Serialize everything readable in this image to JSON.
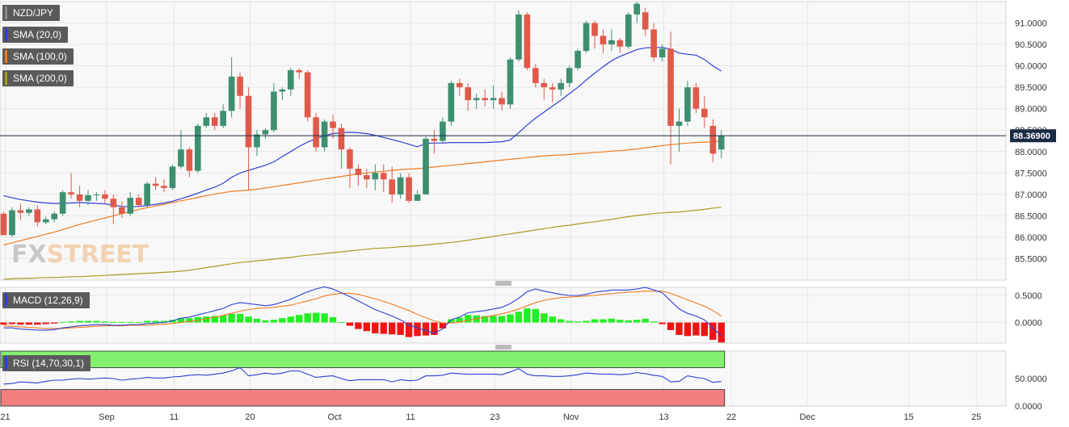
{
  "chart_data": {
    "type": "candlestick",
    "symbol": "NZD/JPY",
    "current_price": 88.369,
    "current_price_label": "88.36900",
    "watermark": "FXSTREET",
    "y_axis": {
      "range": [
        85.0,
        91.5
      ],
      "ticks": [
        "91.0000",
        "90.5000",
        "90.0000",
        "89.5000",
        "89.0000",
        "88.5000",
        "88.0000",
        "87.5000",
        "87.0000",
        "86.5000",
        "86.0000",
        "85.5000"
      ]
    },
    "x_axis": {
      "labels": [
        "21",
        "Sep",
        "11",
        "20",
        "Oct",
        "11",
        "23",
        "Nov",
        "13",
        "22",
        "Dec",
        "15",
        "25"
      ]
    },
    "ohlc": [
      [
        86.55,
        86.05,
        86.6,
        86.05
      ],
      [
        86.05,
        86.63,
        86.7,
        86.0
      ],
      [
        86.63,
        86.57,
        86.78,
        86.4
      ],
      [
        86.57,
        86.65,
        86.7,
        86.5
      ],
      [
        86.65,
        86.35,
        86.75,
        86.25
      ],
      [
        86.35,
        86.42,
        86.48,
        86.3
      ],
      [
        86.42,
        86.55,
        86.6,
        86.35
      ],
      [
        86.55,
        87.05,
        87.1,
        86.5
      ],
      [
        87.05,
        87.0,
        87.5,
        86.9
      ],
      [
        87.0,
        86.85,
        87.2,
        86.7
      ],
      [
        86.85,
        86.98,
        87.1,
        86.75
      ],
      [
        86.98,
        87.0,
        87.05,
        86.85
      ],
      [
        87.0,
        86.9,
        87.1,
        86.8
      ],
      [
        86.9,
        86.7,
        87.0,
        86.3
      ],
      [
        86.7,
        86.55,
        86.85,
        86.45
      ],
      [
        86.55,
        86.92,
        87.05,
        86.5
      ],
      [
        86.92,
        86.75,
        87.0,
        86.7
      ],
      [
        86.75,
        87.25,
        87.3,
        86.7
      ],
      [
        87.25,
        87.2,
        87.4,
        87.1
      ],
      [
        87.2,
        87.15,
        87.35,
        87.05
      ],
      [
        87.15,
        87.65,
        87.7,
        87.1
      ],
      [
        87.65,
        88.05,
        88.5,
        87.6
      ],
      [
        88.05,
        87.55,
        88.1,
        87.4
      ],
      [
        87.55,
        88.6,
        88.65,
        87.5
      ],
      [
        88.6,
        88.8,
        88.9,
        88.55
      ],
      [
        88.8,
        88.6,
        88.9,
        88.5
      ],
      [
        88.6,
        88.95,
        89.1,
        88.55
      ],
      [
        88.95,
        89.75,
        90.2,
        88.8
      ],
      [
        89.75,
        89.3,
        89.85,
        89.0
      ],
      [
        89.3,
        88.1,
        89.5,
        87.1
      ],
      [
        88.1,
        88.4,
        88.5,
        87.9
      ],
      [
        88.4,
        88.5,
        88.55,
        88.3
      ],
      [
        88.5,
        89.4,
        89.6,
        88.45
      ],
      [
        89.4,
        89.45,
        89.5,
        89.2
      ],
      [
        89.45,
        89.9,
        89.95,
        89.3
      ],
      [
        89.9,
        89.85,
        89.95,
        89.7
      ],
      [
        89.85,
        88.8,
        89.9,
        88.7
      ],
      [
        88.8,
        88.1,
        88.9,
        88.0
      ],
      [
        88.1,
        88.7,
        88.75,
        88.0
      ],
      [
        88.7,
        88.55,
        88.85,
        88.3
      ],
      [
        88.55,
        88.05,
        88.65,
        87.6
      ],
      [
        88.05,
        87.6,
        88.1,
        87.15
      ],
      [
        87.6,
        87.45,
        87.7,
        87.2
      ],
      [
        87.45,
        87.35,
        87.6,
        87.15
      ],
      [
        87.35,
        87.5,
        87.7,
        87.1
      ],
      [
        87.5,
        87.35,
        87.7,
        87.05
      ],
      [
        87.35,
        87.0,
        87.65,
        86.8
      ],
      [
        87.0,
        87.4,
        87.5,
        86.9
      ],
      [
        87.4,
        86.85,
        87.5,
        86.8
      ],
      [
        86.85,
        87.0,
        87.1,
        86.85
      ],
      [
        87.0,
        88.3,
        88.35,
        87.0
      ],
      [
        88.3,
        88.25,
        88.5,
        87.95
      ],
      [
        88.25,
        88.7,
        88.8,
        88.2
      ],
      [
        88.7,
        89.6,
        89.65,
        88.6
      ],
      [
        89.6,
        89.5,
        89.7,
        89.3
      ],
      [
        89.5,
        89.2,
        89.6,
        88.95
      ],
      [
        89.2,
        89.25,
        89.35,
        89.0
      ],
      [
        89.25,
        89.2,
        89.45,
        89.05
      ],
      [
        89.2,
        89.25,
        89.55,
        89.0
      ],
      [
        89.25,
        89.1,
        89.4,
        88.95
      ],
      [
        89.1,
        90.15,
        90.2,
        89.0
      ],
      [
        90.15,
        91.2,
        91.3,
        90.1
      ],
      [
        91.2,
        89.95,
        91.25,
        89.9
      ],
      [
        89.95,
        89.6,
        90.05,
        89.5
      ],
      [
        89.6,
        89.5,
        89.7,
        89.2
      ],
      [
        89.5,
        89.45,
        89.6,
        89.15
      ],
      [
        89.45,
        89.6,
        89.7,
        89.3
      ],
      [
        89.6,
        89.95,
        90.0,
        89.5
      ],
      [
        89.95,
        90.35,
        90.4,
        89.9
      ],
      [
        90.35,
        91.0,
        91.05,
        90.3
      ],
      [
        91.0,
        90.7,
        91.05,
        90.4
      ],
      [
        90.7,
        90.5,
        90.85,
        90.3
      ],
      [
        90.5,
        90.6,
        90.85,
        90.35
      ],
      [
        90.6,
        90.45,
        90.65,
        90.3
      ],
      [
        90.45,
        91.2,
        91.25,
        90.4
      ],
      [
        91.2,
        91.45,
        91.5,
        91.0
      ],
      [
        91.25,
        90.85,
        91.35,
        90.7
      ],
      [
        90.85,
        90.2,
        91.0,
        90.1
      ],
      [
        90.2,
        90.4,
        90.5,
        90.1
      ],
      [
        90.4,
        88.6,
        90.8,
        87.7
      ],
      [
        88.6,
        88.7,
        89.0,
        88.0
      ],
      [
        88.7,
        89.5,
        89.65,
        88.6
      ],
      [
        89.5,
        89.0,
        89.6,
        88.9
      ],
      [
        89.0,
        88.8,
        89.3,
        88.55
      ],
      [
        88.6,
        87.95,
        88.75,
        87.75
      ],
      [
        88.05,
        88.37,
        88.5,
        87.85
      ]
    ],
    "series": [
      {
        "name": "SMA (20,0)",
        "color": "#2f3fd4",
        "values": [
          86.97,
          86.92,
          86.88,
          86.85,
          86.82,
          86.8,
          86.79,
          86.79,
          86.8,
          86.81,
          86.8,
          86.79,
          86.78,
          86.75,
          86.72,
          86.71,
          86.72,
          86.74,
          86.77,
          86.8,
          86.84,
          86.9,
          86.96,
          87.03,
          87.1,
          87.17,
          87.26,
          87.4,
          87.5,
          87.56,
          87.62,
          87.68,
          87.76,
          87.88,
          88.0,
          88.12,
          88.22,
          88.3,
          88.37,
          88.42,
          88.44,
          88.45,
          88.44,
          88.42,
          88.38,
          88.33,
          88.28,
          88.23,
          88.17,
          88.11,
          88.19,
          88.2,
          88.2,
          88.21,
          88.21,
          88.21,
          88.21,
          88.21,
          88.22,
          88.23,
          88.27,
          88.44,
          88.62,
          88.78,
          88.92,
          89.06,
          89.2,
          89.35,
          89.5,
          89.67,
          89.83,
          89.98,
          90.12,
          90.22,
          90.3,
          90.38,
          90.42,
          90.43,
          90.43,
          90.39,
          90.3,
          90.27,
          90.25,
          90.15,
          90.0,
          89.88
        ]
      },
      {
        "name": "SMA (100,0)",
        "color": "#f07a1e",
        "values": [
          85.82,
          85.87,
          85.92,
          85.97,
          86.02,
          86.07,
          86.12,
          86.18,
          86.24,
          86.3,
          86.35,
          86.4,
          86.45,
          86.5,
          86.55,
          86.6,
          86.65,
          86.69,
          86.73,
          86.77,
          86.81,
          86.85,
          86.89,
          86.93,
          86.97,
          87.01,
          87.04,
          87.07,
          87.09,
          87.1,
          87.12,
          87.15,
          87.18,
          87.21,
          87.24,
          87.27,
          87.3,
          87.33,
          87.36,
          87.39,
          87.42,
          87.45,
          87.48,
          87.5,
          87.52,
          87.54,
          87.56,
          87.58,
          87.59,
          87.6,
          87.62,
          87.64,
          87.66,
          87.68,
          87.7,
          87.72,
          87.74,
          87.76,
          87.78,
          87.8,
          87.82,
          87.84,
          87.86,
          87.88,
          87.9,
          87.91,
          87.92,
          87.93,
          87.95,
          87.96,
          87.98,
          87.99,
          88.01,
          88.02,
          88.04,
          88.06,
          88.09,
          88.11,
          88.14,
          88.16,
          88.18,
          88.2,
          88.21,
          88.22,
          88.23,
          88.24
        ]
      },
      {
        "name": "SMA (200,0)",
        "color": "#a89a1e",
        "values": [
          85.02,
          85.03,
          85.04,
          85.04,
          85.05,
          85.06,
          85.06,
          85.07,
          85.08,
          85.08,
          85.09,
          85.1,
          85.11,
          85.12,
          85.13,
          85.14,
          85.15,
          85.16,
          85.17,
          85.18,
          85.19,
          85.21,
          85.23,
          85.26,
          85.29,
          85.32,
          85.35,
          85.38,
          85.41,
          85.43,
          85.45,
          85.47,
          85.49,
          85.51,
          85.53,
          85.56,
          85.58,
          85.6,
          85.62,
          85.64,
          85.66,
          85.68,
          85.7,
          85.72,
          85.74,
          85.75,
          85.76,
          85.78,
          85.79,
          85.8,
          85.82,
          85.84,
          85.86,
          85.88,
          85.9,
          85.93,
          85.96,
          85.99,
          86.02,
          86.05,
          86.08,
          86.11,
          86.14,
          86.17,
          86.2,
          86.23,
          86.26,
          86.28,
          86.31,
          86.34,
          86.36,
          86.39,
          86.42,
          86.45,
          86.48,
          86.51,
          86.53,
          86.55,
          86.57,
          86.58,
          86.59,
          86.61,
          86.63,
          86.65,
          86.68,
          86.7
        ]
      }
    ],
    "macd": {
      "label": "MACD (12,26,9)",
      "ticks": [
        "0.5000",
        "0.0000"
      ],
      "range": [
        -0.38,
        0.65
      ],
      "macd_color": "#2f3fd4",
      "signal_color": "#f07a1e",
      "macd_line": [
        -0.1,
        -0.1,
        -0.12,
        -0.13,
        -0.14,
        -0.14,
        -0.13,
        -0.1,
        -0.08,
        -0.06,
        -0.05,
        -0.04,
        -0.04,
        -0.05,
        -0.05,
        -0.04,
        -0.04,
        -0.02,
        -0.01,
        0.0,
        0.03,
        0.08,
        0.1,
        0.14,
        0.18,
        0.22,
        0.26,
        0.33,
        0.37,
        0.35,
        0.33,
        0.31,
        0.33,
        0.38,
        0.43,
        0.5,
        0.57,
        0.62,
        0.66,
        0.62,
        0.55,
        0.48,
        0.4,
        0.32,
        0.24,
        0.18,
        0.12,
        0.05,
        -0.05,
        -0.1,
        -0.15,
        -0.2,
        -0.12,
        0.05,
        0.1,
        0.18,
        0.2,
        0.22,
        0.25,
        0.28,
        0.35,
        0.45,
        0.57,
        0.62,
        0.58,
        0.55,
        0.52,
        0.5,
        0.5,
        0.52,
        0.56,
        0.58,
        0.6,
        0.6,
        0.6,
        0.62,
        0.65,
        0.6,
        0.55,
        0.4,
        0.25,
        0.17,
        0.12,
        0.05,
        -0.1,
        -0.25
      ],
      "signal_line": [
        -0.06,
        -0.07,
        -0.08,
        -0.09,
        -0.1,
        -0.11,
        -0.11,
        -0.11,
        -0.1,
        -0.09,
        -0.08,
        -0.07,
        -0.06,
        -0.06,
        -0.06,
        -0.05,
        -0.05,
        -0.05,
        -0.04,
        -0.03,
        -0.02,
        0.0,
        0.02,
        0.04,
        0.07,
        0.1,
        0.13,
        0.17,
        0.21,
        0.24,
        0.26,
        0.27,
        0.28,
        0.3,
        0.32,
        0.36,
        0.4,
        0.44,
        0.49,
        0.52,
        0.54,
        0.54,
        0.52,
        0.48,
        0.44,
        0.39,
        0.34,
        0.28,
        0.22,
        0.15,
        0.09,
        0.03,
        -0.01,
        -0.01,
        0.01,
        0.04,
        0.07,
        0.1,
        0.13,
        0.16,
        0.2,
        0.25,
        0.31,
        0.37,
        0.41,
        0.44,
        0.46,
        0.47,
        0.48,
        0.49,
        0.5,
        0.52,
        0.53,
        0.55,
        0.56,
        0.57,
        0.58,
        0.58,
        0.58,
        0.54,
        0.48,
        0.42,
        0.36,
        0.3,
        0.22,
        0.12
      ],
      "histogram": [
        -0.04,
        -0.03,
        -0.04,
        -0.04,
        -0.04,
        -0.03,
        -0.02,
        0.01,
        0.02,
        0.03,
        0.03,
        0.03,
        0.02,
        0.01,
        0.01,
        0.01,
        0.01,
        0.03,
        0.03,
        0.03,
        0.05,
        0.08,
        0.08,
        0.1,
        0.11,
        0.12,
        0.13,
        0.16,
        0.16,
        0.11,
        0.07,
        0.04,
        0.05,
        0.08,
        0.11,
        0.14,
        0.17,
        0.18,
        0.17,
        0.1,
        0.01,
        -0.06,
        -0.12,
        -0.16,
        -0.2,
        -0.21,
        -0.22,
        -0.23,
        -0.27,
        -0.25,
        -0.24,
        -0.23,
        -0.11,
        0.06,
        0.09,
        0.14,
        0.13,
        0.12,
        0.12,
        0.12,
        0.15,
        0.2,
        0.26,
        0.25,
        0.17,
        0.11,
        0.06,
        0.03,
        0.02,
        0.03,
        0.06,
        0.06,
        0.07,
        0.05,
        0.04,
        0.05,
        0.07,
        0.02,
        -0.03,
        -0.14,
        -0.23,
        -0.25,
        -0.24,
        -0.25,
        -0.32,
        -0.37
      ]
    },
    "rsi": {
      "label": "RSI (14,70,30,1)",
      "ticks": [
        "50.0000",
        "0.0000"
      ],
      "range": [
        0,
        100
      ],
      "overbought": 70,
      "oversold": 30,
      "line_color": "#2f3fd4",
      "values": [
        40,
        41,
        44,
        43,
        42,
        45,
        47,
        47,
        49,
        50,
        49,
        50,
        51,
        50,
        47,
        49,
        50,
        52,
        51,
        51,
        53,
        54,
        56,
        57,
        56,
        58,
        60,
        64,
        70,
        55,
        57,
        60,
        58,
        60,
        64,
        64,
        58,
        52,
        54,
        55,
        50,
        46,
        48,
        48,
        48,
        48,
        44,
        48,
        46,
        47,
        55,
        55,
        56,
        60,
        59,
        58,
        58,
        58,
        58,
        57,
        62,
        68,
        58,
        55,
        55,
        54,
        54,
        55,
        57,
        60,
        59,
        58,
        58,
        57,
        58,
        61,
        59,
        56,
        54,
        44,
        45,
        55,
        52,
        50,
        43,
        45
      ]
    }
  }
}
